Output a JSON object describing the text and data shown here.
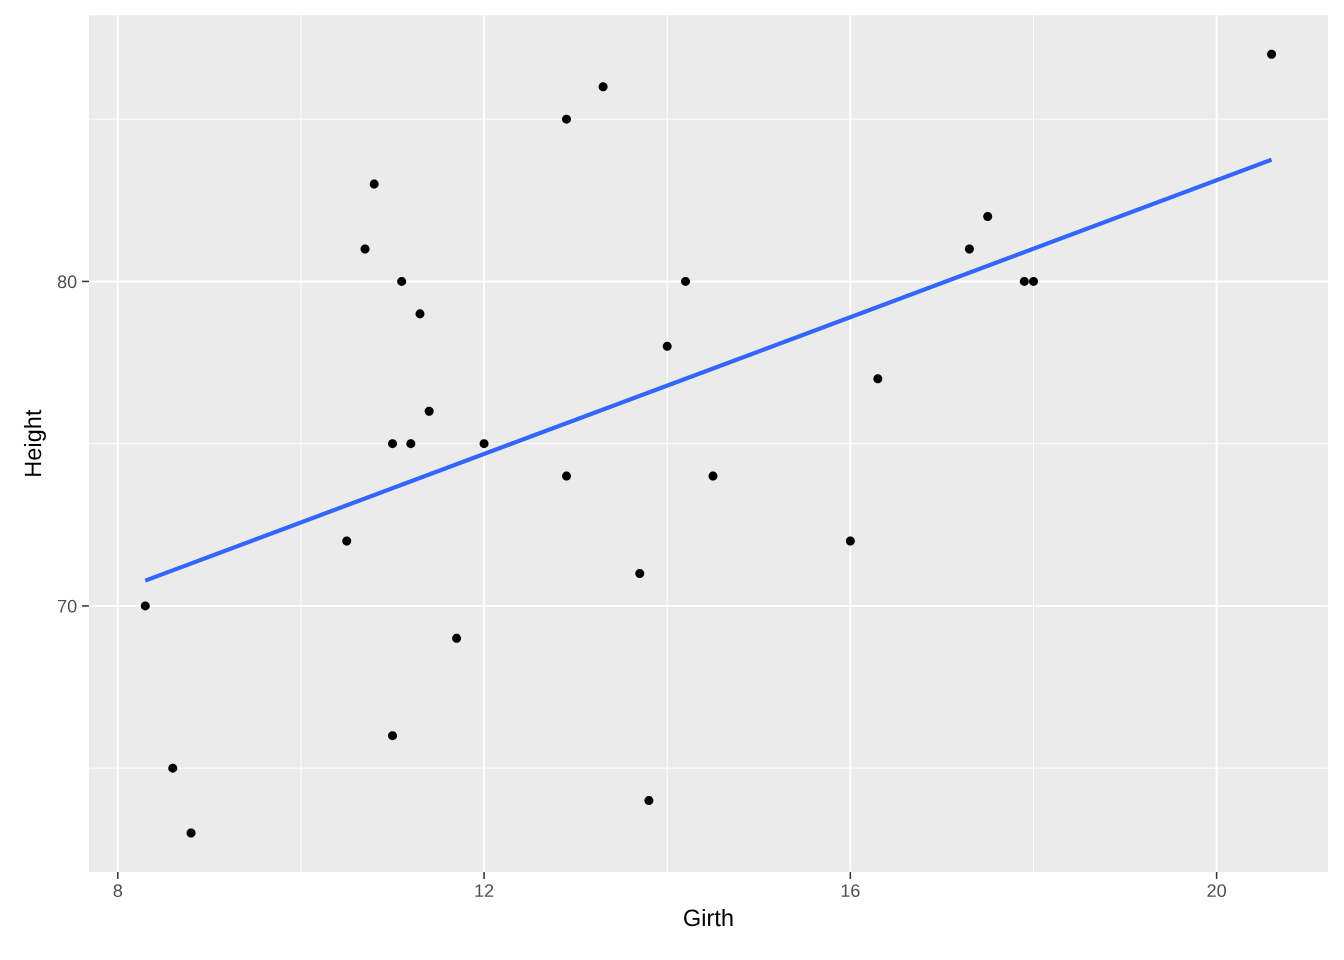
{
  "chart_data": {
    "type": "scatter",
    "xlabel": "Girth",
    "ylabel": "Height",
    "xlim": [
      7.685,
      21.215
    ],
    "ylim": [
      61.8,
      88.2
    ],
    "xticks": [
      8,
      {
        "value": 10,
        "label": null
      },
      12,
      {
        "value": 14,
        "label": null
      },
      16,
      {
        "value": 18,
        "label": null
      },
      20
    ],
    "yticks": [
      {
        "value": 65,
        "label": null
      },
      70,
      {
        "value": 75,
        "label": null
      },
      80,
      {
        "value": 85,
        "label": null
      }
    ],
    "grid": true,
    "marker": "circle",
    "series": [
      {
        "color": "#000000",
        "x": [
          8.3,
          8.6,
          8.8,
          10.5,
          10.7,
          10.8,
          11.0,
          11.0,
          11.1,
          11.2,
          11.3,
          11.4,
          11.7,
          12.0,
          12.9,
          12.9,
          13.3,
          13.7,
          13.8,
          14.0,
          14.2,
          14.5,
          16.0,
          16.3,
          17.3,
          17.5,
          17.9,
          18.0,
          20.6
        ],
        "values": [
          70,
          65,
          63,
          72,
          81,
          83,
          66,
          75,
          80,
          75,
          79,
          76,
          69,
          75,
          74,
          85,
          86,
          71,
          64,
          78,
          80,
          74,
          72,
          77,
          81,
          82,
          80,
          80,
          87
        ]
      },
      {
        "type": "line",
        "marker": "none",
        "color": "#3366ff",
        "x": [
          8.3,
          20.6
        ],
        "values": [
          70.78,
          83.75
        ]
      }
    ]
  }
}
